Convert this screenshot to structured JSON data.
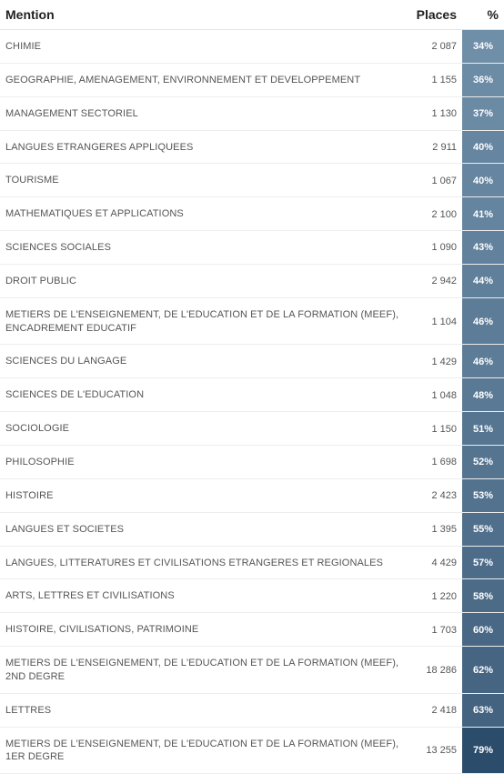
{
  "columns": {
    "mention": "Mention",
    "places": "Places",
    "pct": "%"
  },
  "pct_colors": {
    "min_color": "#6f8ea8",
    "max_color": "#2c4c6b",
    "min_pct": 34,
    "max_pct": 79
  },
  "rows": [
    {
      "mention": "CHIMIE",
      "places": "2 087",
      "pct": 34
    },
    {
      "mention": "GEOGRAPHIE, AMENAGEMENT, ENVIRONNEMENT ET DEVELOPPEMENT",
      "places": "1 155",
      "pct": 36
    },
    {
      "mention": "MANAGEMENT SECTORIEL",
      "places": "1 130",
      "pct": 37
    },
    {
      "mention": "LANGUES ETRANGERES APPLIQUEES",
      "places": "2 911",
      "pct": 40
    },
    {
      "mention": "TOURISME",
      "places": "1 067",
      "pct": 40
    },
    {
      "mention": "MATHEMATIQUES ET APPLICATIONS",
      "places": "2 100",
      "pct": 41
    },
    {
      "mention": "SCIENCES SOCIALES",
      "places": "1 090",
      "pct": 43
    },
    {
      "mention": "DROIT PUBLIC",
      "places": "2 942",
      "pct": 44
    },
    {
      "mention": "METIERS DE L'ENSEIGNEMENT, DE L'EDUCATION ET DE LA FORMATION (MEEF), ENCADREMENT EDUCATIF",
      "places": "1 104",
      "pct": 46
    },
    {
      "mention": "SCIENCES DU LANGAGE",
      "places": "1 429",
      "pct": 46
    },
    {
      "mention": "SCIENCES DE L'EDUCATION",
      "places": "1 048",
      "pct": 48
    },
    {
      "mention": "SOCIOLOGIE",
      "places": "1 150",
      "pct": 51
    },
    {
      "mention": "PHILOSOPHIE",
      "places": "1 698",
      "pct": 52
    },
    {
      "mention": "HISTOIRE",
      "places": "2 423",
      "pct": 53
    },
    {
      "mention": "LANGUES ET SOCIETES",
      "places": "1 395",
      "pct": 55
    },
    {
      "mention": "LANGUES, LITTERATURES ET CIVILISATIONS ETRANGERES ET REGIONALES",
      "places": "4 429",
      "pct": 57
    },
    {
      "mention": "ARTS, LETTRES ET CIVILISATIONS",
      "places": "1 220",
      "pct": 58
    },
    {
      "mention": "HISTOIRE, CIVILISATIONS, PATRIMOINE",
      "places": "1 703",
      "pct": 60
    },
    {
      "mention": "METIERS DE L'ENSEIGNEMENT, DE L'EDUCATION ET DE LA FORMATION (MEEF), 2ND DEGRE",
      "places": "18 286",
      "pct": 62
    },
    {
      "mention": "LETTRES",
      "places": "2 418",
      "pct": 63
    },
    {
      "mention": "METIERS DE L'ENSEIGNEMENT, DE L'EDUCATION ET DE LA FORMATION (MEEF), 1ER DEGRE",
      "places": "13 255",
      "pct": 79
    }
  ]
}
